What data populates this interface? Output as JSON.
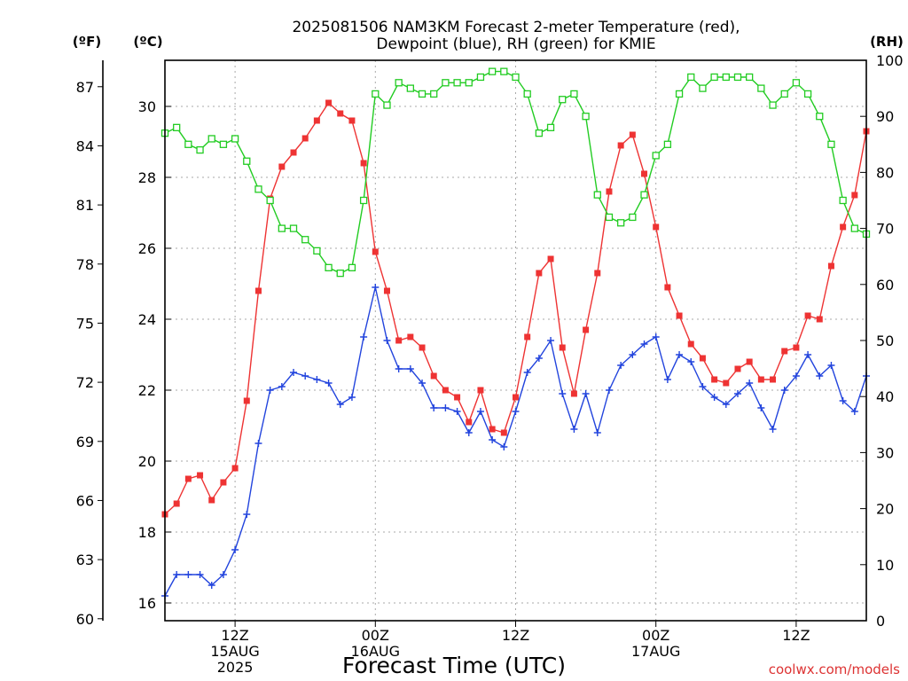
{
  "title_line1": "2025081506 NAM3KM Forecast 2-meter Temperature (red),",
  "title_line2": "Dewpoint (blue), RH (green) for KMIE",
  "credit": "coolwx.com/models",
  "chart_data": {
    "type": "line",
    "title": "2025081506 NAM3KM Forecast 2-meter Temperature (red), Dewpoint (blue), RH (green) for KMIE",
    "xlabel": "Forecast Time (UTC)",
    "x_unit": "forecast hour from 2025-08-15 06Z",
    "x": [
      0,
      1,
      2,
      3,
      4,
      5,
      6,
      7,
      8,
      9,
      10,
      11,
      12,
      13,
      14,
      15,
      16,
      17,
      18,
      19,
      20,
      21,
      22,
      23,
      24,
      25,
      26,
      27,
      28,
      29,
      30,
      31,
      32,
      33,
      34,
      35,
      36,
      37,
      38,
      39,
      40,
      41,
      42,
      43,
      44,
      45,
      46,
      47,
      48,
      49,
      50,
      51,
      52,
      53,
      54,
      55,
      56,
      57,
      58,
      59,
      60
    ],
    "xlim": [
      0,
      60
    ],
    "x_ticks": [
      {
        "x": 6,
        "labels": [
          "12Z",
          "15AUG",
          "2025"
        ]
      },
      {
        "x": 18,
        "labels": [
          "00Z",
          "16AUG"
        ]
      },
      {
        "x": 30,
        "labels": [
          "12Z"
        ]
      },
      {
        "x": 42,
        "labels": [
          "00Z",
          "17AUG"
        ]
      },
      {
        "x": 54,
        "labels": [
          "12Z"
        ]
      }
    ],
    "axes": {
      "left_f": {
        "label": "(ºF)",
        "ticks": [
          60,
          63,
          66,
          69,
          72,
          75,
          78,
          81,
          84,
          87
        ]
      },
      "left_c": {
        "label": "(ºC)",
        "ticks": [
          16,
          18,
          20,
          22,
          24,
          26,
          28,
          30
        ],
        "ylim": [
          15.5,
          31.3
        ]
      },
      "right_rh": {
        "label": "(RH)",
        "ticks": [
          0,
          10,
          20,
          30,
          40,
          50,
          60,
          70,
          80,
          90,
          100
        ],
        "ylim": [
          0,
          100
        ]
      }
    },
    "grid": true,
    "series": [
      {
        "name": "Temperature",
        "color": "#ee3333",
        "marker": "filled-square",
        "axis": "left_c",
        "values": [
          18.5,
          18.8,
          19.5,
          19.6,
          18.9,
          19.4,
          19.8,
          21.7,
          24.8,
          27.4,
          28.3,
          28.7,
          29.1,
          29.6,
          30.1,
          29.8,
          29.6,
          28.4,
          25.9,
          24.8,
          23.4,
          23.5,
          23.2,
          22.4,
          22.0,
          21.8,
          21.1,
          22.0,
          20.9,
          20.8,
          21.8,
          23.5,
          25.3,
          25.7,
          23.2,
          21.9,
          23.7,
          25.3,
          27.6,
          28.9,
          29.2,
          28.1,
          26.6,
          24.9,
          24.1,
          23.3,
          22.9,
          22.3,
          22.2,
          22.6,
          22.8,
          22.3,
          22.3,
          23.1,
          23.2,
          24.1,
          24.0,
          25.5,
          26.6,
          27.5,
          29.3
        ]
      },
      {
        "name": "Dewpoint",
        "color": "#2244dd",
        "marker": "plus",
        "axis": "left_c",
        "values": [
          16.2,
          16.8,
          16.8,
          16.8,
          16.5,
          16.8,
          17.5,
          18.5,
          20.5,
          22.0,
          22.1,
          22.5,
          22.4,
          22.3,
          22.2,
          21.6,
          21.8,
          23.5,
          24.9,
          23.4,
          22.6,
          22.6,
          22.2,
          21.5,
          21.5,
          21.4,
          20.8,
          21.4,
          20.6,
          20.4,
          21.4,
          22.5,
          22.9,
          23.4,
          21.9,
          20.9,
          21.9,
          20.8,
          22.0,
          22.7,
          23.0,
          23.3,
          23.5,
          22.3,
          23.0,
          22.8,
          22.1,
          21.8,
          21.6,
          21.9,
          22.2,
          21.5,
          20.9,
          22.0,
          22.4,
          23.0,
          22.4,
          22.7,
          21.7,
          21.4,
          22.4
        ]
      },
      {
        "name": "RH",
        "color": "#22cc22",
        "marker": "open-square",
        "axis": "right_rh",
        "values": [
          87,
          88,
          85,
          84,
          86,
          85,
          86,
          82,
          77,
          75,
          70,
          70,
          68,
          66,
          63,
          62,
          63,
          75,
          94,
          92,
          96,
          95,
          94,
          94,
          96,
          96,
          96,
          97,
          98,
          98,
          97,
          94,
          87,
          88,
          93,
          94,
          90,
          76,
          72,
          71,
          72,
          76,
          83,
          85,
          94,
          97,
          95,
          97,
          97,
          97,
          97,
          95,
          92,
          94,
          96,
          94,
          90,
          85,
          75,
          70,
          69
        ]
      }
    ]
  }
}
